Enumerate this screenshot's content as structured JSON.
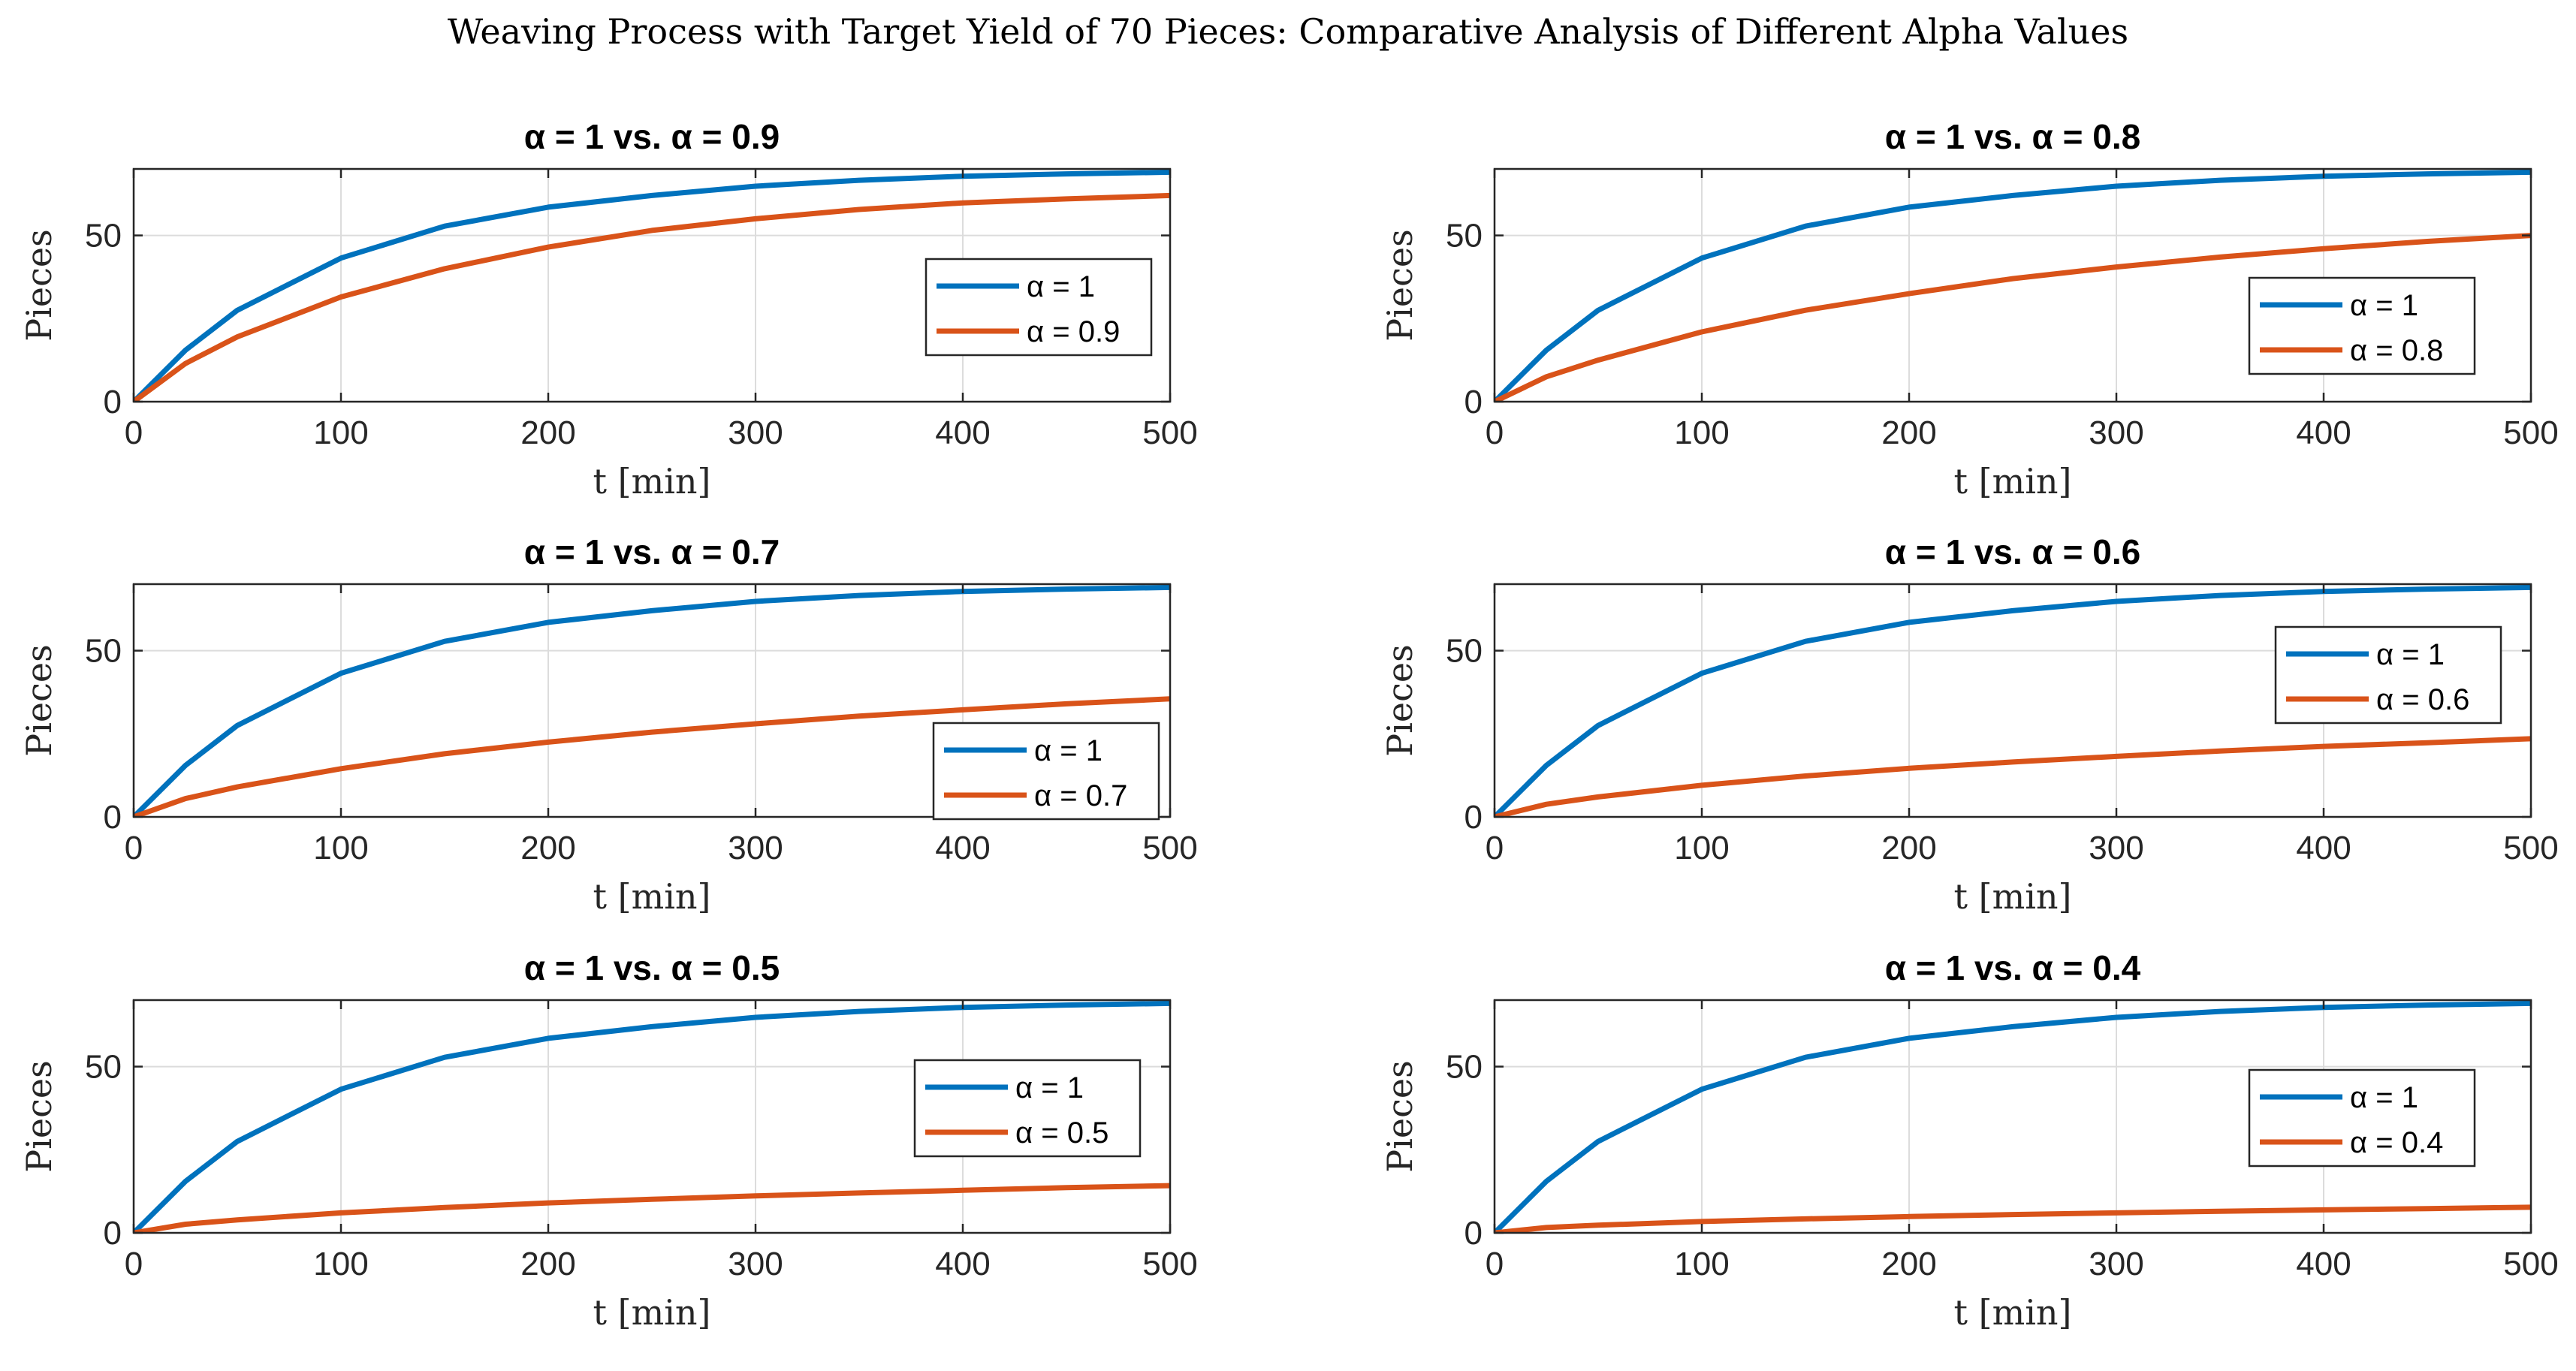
{
  "figure_title": "Weaving Process with Target Yield of 70 Pieces: Comparative Analysis of Different Alpha Values",
  "colors": {
    "series_1": "#0072BD",
    "series_2": "#D95319"
  },
  "chart_data": [
    {
      "type": "line",
      "title": "α = 1 vs.  α = 0.9",
      "xlabel": "t [min]",
      "ylabel": "Pieces",
      "xlim": [
        0,
        500
      ],
      "ylim": [
        0,
        70
      ],
      "xticks": [
        "0",
        "100",
        "200",
        "300",
        "400",
        "500"
      ],
      "yticks": [
        "0",
        "50"
      ],
      "grid": true,
      "legend_position": "right",
      "x": [
        0,
        25,
        50,
        100,
        150,
        200,
        250,
        300,
        350,
        400,
        450,
        500
      ],
      "series": [
        {
          "name": "α = 1",
          "values": [
            0,
            15.5,
            27.5,
            43.2,
            52.8,
            58.5,
            62.0,
            64.8,
            66.6,
            67.8,
            68.5,
            69.0
          ]
        },
        {
          "name": "α = 0.9",
          "values": [
            0,
            11.5,
            19.5,
            31.5,
            40.0,
            46.5,
            51.5,
            55.0,
            57.8,
            59.8,
            61.0,
            62.0
          ]
        }
      ]
    },
    {
      "type": "line",
      "title": "α = 1 vs.  α = 0.8",
      "xlabel": "t [min]",
      "ylabel": "Pieces",
      "xlim": [
        0,
        500
      ],
      "ylim": [
        0,
        70
      ],
      "xticks": [
        "0",
        "100",
        "200",
        "300",
        "400",
        "500"
      ],
      "yticks": [
        "0",
        "50"
      ],
      "grid": true,
      "legend_position": "right",
      "x": [
        0,
        25,
        50,
        100,
        150,
        200,
        250,
        300,
        350,
        400,
        450,
        500
      ],
      "series": [
        {
          "name": "α = 1",
          "values": [
            0,
            15.5,
            27.5,
            43.2,
            52.8,
            58.5,
            62.0,
            64.8,
            66.6,
            67.8,
            68.5,
            69.0
          ]
        },
        {
          "name": "α = 0.8",
          "values": [
            0,
            7.5,
            12.5,
            21.0,
            27.5,
            32.5,
            37.0,
            40.5,
            43.5,
            46.0,
            48.2,
            50.0
          ]
        }
      ]
    },
    {
      "type": "line",
      "title": "α = 1 vs.  α = 0.7",
      "xlabel": "t [min]",
      "ylabel": "Pieces",
      "xlim": [
        0,
        500
      ],
      "ylim": [
        0,
        70
      ],
      "xticks": [
        "0",
        "100",
        "200",
        "300",
        "400",
        "500"
      ],
      "yticks": [
        "0",
        "50"
      ],
      "grid": true,
      "legend_position": "bottom-right",
      "x": [
        0,
        25,
        50,
        100,
        150,
        200,
        250,
        300,
        350,
        400,
        450,
        500
      ],
      "series": [
        {
          "name": "α = 1",
          "values": [
            0,
            15.5,
            27.5,
            43.2,
            52.8,
            58.5,
            62.0,
            64.8,
            66.6,
            67.8,
            68.5,
            69.0
          ]
        },
        {
          "name": "α = 0.7",
          "values": [
            0,
            5.5,
            9.0,
            14.5,
            19.0,
            22.5,
            25.5,
            28.0,
            30.3,
            32.2,
            34.0,
            35.5
          ]
        }
      ]
    },
    {
      "type": "line",
      "title": "α = 1 vs.  α = 0.6",
      "xlabel": "t [min]",
      "ylabel": "Pieces",
      "xlim": [
        0,
        500
      ],
      "ylim": [
        0,
        70
      ],
      "xticks": [
        "0",
        "100",
        "200",
        "300",
        "400",
        "500"
      ],
      "yticks": [
        "0",
        "50"
      ],
      "grid": true,
      "legend_position": "right",
      "x": [
        0,
        25,
        50,
        100,
        150,
        200,
        250,
        300,
        350,
        400,
        450,
        500
      ],
      "series": [
        {
          "name": "α = 1",
          "values": [
            0,
            15.5,
            27.5,
            43.2,
            52.8,
            58.5,
            62.0,
            64.8,
            66.6,
            67.8,
            68.5,
            69.0
          ]
        },
        {
          "name": "α = 0.6",
          "values": [
            0,
            3.8,
            6.0,
            9.5,
            12.3,
            14.6,
            16.5,
            18.2,
            19.8,
            21.2,
            22.3,
            23.5
          ]
        }
      ]
    },
    {
      "type": "line",
      "title": "α = 1 vs.  α = 0.5",
      "xlabel": "t [min]",
      "ylabel": "Pieces",
      "xlim": [
        0,
        500
      ],
      "ylim": [
        0,
        70
      ],
      "xticks": [
        "0",
        "100",
        "200",
        "300",
        "400",
        "500"
      ],
      "yticks": [
        "0",
        "50"
      ],
      "grid": true,
      "legend_position": "right",
      "x": [
        0,
        25,
        50,
        100,
        150,
        200,
        250,
        300,
        350,
        400,
        450,
        500
      ],
      "series": [
        {
          "name": "α = 1",
          "values": [
            0,
            15.5,
            27.5,
            43.2,
            52.8,
            58.5,
            62.0,
            64.8,
            66.6,
            67.8,
            68.5,
            69.0
          ]
        },
        {
          "name": "α = 0.5",
          "values": [
            0,
            2.6,
            3.9,
            6.0,
            7.6,
            9.0,
            10.1,
            11.1,
            12.0,
            12.8,
            13.6,
            14.2
          ]
        }
      ]
    },
    {
      "type": "line",
      "title": "α = 1 vs.  α = 0.4",
      "xlabel": "t [min]",
      "ylabel": "Pieces",
      "xlim": [
        0,
        500
      ],
      "ylim": [
        0,
        70
      ],
      "xticks": [
        "0",
        "100",
        "200",
        "300",
        "400",
        "500"
      ],
      "yticks": [
        "0",
        "50"
      ],
      "grid": true,
      "legend_position": "right",
      "x": [
        0,
        25,
        50,
        100,
        150,
        200,
        250,
        300,
        350,
        400,
        450,
        500
      ],
      "series": [
        {
          "name": "α = 1",
          "values": [
            0,
            15.5,
            27.5,
            43.2,
            52.8,
            58.5,
            62.0,
            64.8,
            66.6,
            67.8,
            68.5,
            69.0
          ]
        },
        {
          "name": "α = 0.4",
          "values": [
            0,
            1.6,
            2.3,
            3.4,
            4.2,
            4.9,
            5.5,
            6.0,
            6.5,
            6.9,
            7.3,
            7.7
          ]
        }
      ]
    }
  ]
}
